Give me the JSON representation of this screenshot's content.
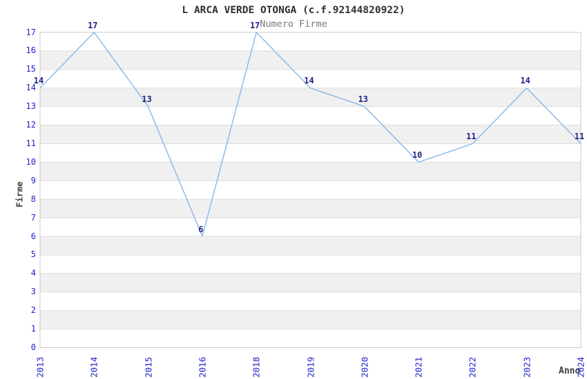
{
  "chart_data": {
    "type": "line",
    "title": "L ARCA VERDE OTONGA (c.f.92144820922)",
    "subtitle": "Numero Firme",
    "xlabel": "Anno",
    "ylabel": "Firme",
    "categories": [
      "2013",
      "2014",
      "2015",
      "2016",
      "2018",
      "2019",
      "2020",
      "2021",
      "2022",
      "2023",
      "2024"
    ],
    "series": [
      {
        "name": "Numero Firme",
        "values": [
          14,
          17,
          13,
          6,
          17,
          14,
          13,
          10,
          11,
          14,
          11
        ]
      }
    ],
    "ylim": [
      0,
      17
    ],
    "ytick_step": 1,
    "legend": "none",
    "grid": "horizontal-gridlines-with-alternating-bands",
    "point_markers": "none",
    "data_labels": "above-left-of-points",
    "style": {
      "line_color": "#87b6e9",
      "tick_label_color": "#2121cd",
      "point_label_color": "#22228a",
      "band_color": "#f0f0f0",
      "gridline_color": "#dedede",
      "border_color": "#c9c9c9",
      "title_color": "#2e2e2e",
      "subtitle_color": "#7a7a7a",
      "axis_title_color": "#3c3c3c",
      "background_color": "#ffffff"
    }
  }
}
